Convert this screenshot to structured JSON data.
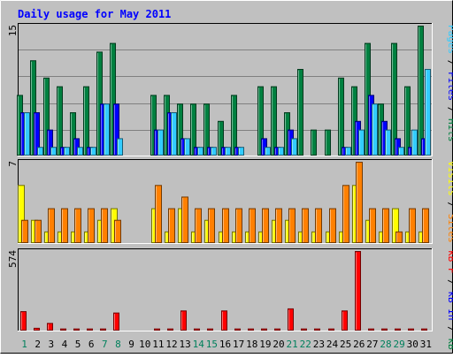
{
  "chart_data": [
    {
      "type": "bar",
      "title": "Daily usage for May 2011",
      "categories": [
        "1",
        "2",
        "3",
        "4",
        "5",
        "6",
        "7",
        "8",
        "9",
        "10",
        "11",
        "12",
        "13",
        "14",
        "15",
        "16",
        "17",
        "18",
        "19",
        "20",
        "21",
        "22",
        "23",
        "24",
        "25",
        "26",
        "27",
        "28",
        "29",
        "30",
        "31"
      ],
      "weekend_days": [
        "1",
        "7",
        "8",
        "14",
        "15",
        "21",
        "22",
        "28",
        "29"
      ],
      "ylabel_max": "15",
      "ylim": [
        0,
        15
      ],
      "legend": [
        {
          "text": "Pages",
          "color": "#33ccff"
        },
        {
          "text": " / ",
          "color": "#000000"
        },
        {
          "text": "Files",
          "color": "#0000ff"
        },
        {
          "text": " / ",
          "color": "#000000"
        },
        {
          "text": "Hits",
          "color": "#008040"
        }
      ],
      "series": [
        {
          "key": "hits",
          "color": "#008040",
          "values": [
            7,
            11,
            9,
            8,
            5,
            8,
            12,
            13,
            0,
            0,
            7,
            7,
            6,
            6,
            6,
            4,
            7,
            0,
            8,
            8,
            5,
            10,
            3,
            3,
            9,
            8,
            13,
            6,
            13,
            8,
            15
          ]
        },
        {
          "key": "files",
          "color": "#0000ff",
          "values": [
            5,
            5,
            3,
            1,
            2,
            1,
            6,
            6,
            0,
            0,
            3,
            5,
            2,
            1,
            1,
            1,
            1,
            0,
            2,
            1,
            3,
            0,
            0,
            0,
            1,
            4,
            7,
            4,
            2,
            1,
            2
          ]
        },
        {
          "key": "pages",
          "color": "#33ccff",
          "values": [
            5,
            1,
            1,
            1,
            1,
            1,
            6,
            2,
            0,
            0,
            3,
            5,
            2,
            1,
            1,
            1,
            1,
            0,
            1,
            1,
            2,
            0,
            0,
            0,
            1,
            3,
            6,
            3,
            1,
            3,
            10
          ]
        }
      ]
    },
    {
      "type": "bar",
      "ylabel_max": "7",
      "ylim": [
        0,
        7
      ],
      "legend": [
        {
          "text": "Visits",
          "color": "#ffff00"
        },
        {
          "text": " / ",
          "color": "#000000"
        },
        {
          "text": "Sites",
          "color": "#ff8000"
        }
      ],
      "series": [
        {
          "key": "visits",
          "color": "#ffff00",
          "values": [
            5,
            2,
            1,
            1,
            1,
            1,
            2,
            3,
            0,
            0,
            3,
            1,
            3,
            1,
            2,
            1,
            1,
            1,
            1,
            2,
            2,
            1,
            1,
            1,
            1,
            5,
            2,
            1,
            3,
            1,
            1
          ]
        },
        {
          "key": "sites",
          "color": "#ff8000",
          "values": [
            2,
            2,
            3,
            3,
            3,
            3,
            3,
            2,
            0,
            0,
            5,
            3,
            4,
            3,
            3,
            3,
            3,
            3,
            3,
            3,
            3,
            3,
            3,
            3,
            5,
            7,
            3,
            3,
            1,
            3,
            3
          ]
        }
      ]
    },
    {
      "type": "bar",
      "ylabel_max": "574",
      "ylim": [
        0,
        574
      ],
      "legend": [
        {
          "text": "kB F",
          "color": "#ff0000"
        },
        {
          "text": " / ",
          "color": "#000000"
        },
        {
          "text": "kB In",
          "color": "#0000ff"
        },
        {
          "text": " / ",
          "color": "#000000"
        },
        {
          "text": "kB Out",
          "color": "#008040"
        }
      ],
      "series": [
        {
          "key": "kbf",
          "color": "#ff0000",
          "values": [
            140,
            20,
            55,
            15,
            15,
            15,
            15,
            130,
            0,
            0,
            15,
            15,
            145,
            15,
            15,
            145,
            15,
            15,
            15,
            15,
            160,
            15,
            15,
            15,
            145,
            574,
            15,
            15,
            15,
            15,
            15
          ]
        }
      ]
    }
  ]
}
